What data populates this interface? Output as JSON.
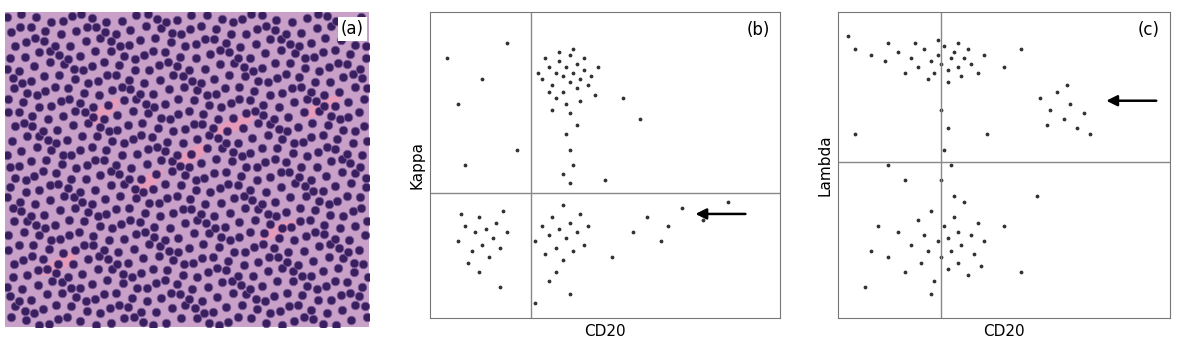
{
  "chart_data": [
    {
      "type": "image",
      "panel_label": "(a)"
    },
    {
      "type": "scatter",
      "panel_label": "(b)",
      "x_label": "CD20",
      "y_label": "Kappa",
      "xlim": [
        0,
        100
      ],
      "ylim": [
        0,
        100
      ],
      "tick_labels": false,
      "color": "#333333",
      "quadrant": {
        "x": 29,
        "y": 41
      },
      "arrow": {
        "x": 75,
        "y": 34
      },
      "points": [
        [
          32,
          78
        ],
        [
          34,
          82
        ],
        [
          35,
          76
        ],
        [
          36,
          80
        ],
        [
          37,
          84
        ],
        [
          38,
          74
        ],
        [
          38,
          79
        ],
        [
          39,
          82
        ],
        [
          40,
          77
        ],
        [
          40,
          86
        ],
        [
          41,
          80
        ],
        [
          42,
          75
        ],
        [
          42,
          83
        ],
        [
          43,
          78
        ],
        [
          44,
          81
        ],
        [
          45,
          76
        ],
        [
          36,
          72
        ],
        [
          33,
          85
        ],
        [
          39,
          70
        ],
        [
          41,
          88
        ],
        [
          44,
          85
        ],
        [
          46,
          79
        ],
        [
          47,
          73
        ],
        [
          35,
          68
        ],
        [
          43,
          71
        ],
        [
          37,
          87
        ],
        [
          40,
          67
        ],
        [
          34,
          74
        ],
        [
          48,
          82
        ],
        [
          31,
          80
        ],
        [
          39,
          60
        ],
        [
          40,
          55
        ],
        [
          41,
          50
        ],
        [
          38,
          47
        ],
        [
          42,
          63
        ],
        [
          40,
          44
        ],
        [
          8,
          25
        ],
        [
          10,
          30
        ],
        [
          12,
          22
        ],
        [
          13,
          28
        ],
        [
          14,
          33
        ],
        [
          15,
          24
        ],
        [
          16,
          29
        ],
        [
          17,
          20
        ],
        [
          18,
          26
        ],
        [
          11,
          18
        ],
        [
          19,
          31
        ],
        [
          20,
          23
        ],
        [
          9,
          34
        ],
        [
          14,
          15
        ],
        [
          22,
          28
        ],
        [
          21,
          35
        ],
        [
          30,
          25
        ],
        [
          32,
          30
        ],
        [
          33,
          21
        ],
        [
          34,
          27
        ],
        [
          35,
          33
        ],
        [
          36,
          23
        ],
        [
          37,
          29
        ],
        [
          38,
          19
        ],
        [
          39,
          26
        ],
        [
          40,
          31
        ],
        [
          41,
          22
        ],
        [
          42,
          28
        ],
        [
          43,
          34
        ],
        [
          44,
          24
        ],
        [
          36,
          15
        ],
        [
          38,
          37
        ],
        [
          34,
          12
        ],
        [
          45,
          30
        ],
        [
          5,
          85
        ],
        [
          8,
          70
        ],
        [
          15,
          78
        ],
        [
          22,
          90
        ],
        [
          55,
          72
        ],
        [
          60,
          65
        ],
        [
          25,
          55
        ],
        [
          10,
          50
        ],
        [
          52,
          20
        ],
        [
          58,
          28
        ],
        [
          62,
          33
        ],
        [
          68,
          30
        ],
        [
          72,
          36
        ],
        [
          66,
          25
        ],
        [
          78,
          32
        ],
        [
          85,
          38
        ],
        [
          30,
          5
        ],
        [
          40,
          8
        ],
        [
          20,
          10
        ],
        [
          50,
          45
        ]
      ]
    },
    {
      "type": "scatter",
      "panel_label": "(c)",
      "x_label": "CD20",
      "y_label": "Lambda",
      "xlim": [
        0,
        100
      ],
      "ylim": [
        0,
        100
      ],
      "tick_labels": false,
      "color": "#333333",
      "quadrant": {
        "x": 31,
        "y": 51
      },
      "arrow": {
        "x": 80,
        "y": 71
      },
      "points": [
        [
          5,
          88
        ],
        [
          10,
          86
        ],
        [
          14,
          84
        ],
        [
          18,
          87
        ],
        [
          22,
          85
        ],
        [
          24,
          82
        ],
        [
          26,
          88
        ],
        [
          28,
          84
        ],
        [
          29,
          80
        ],
        [
          30,
          86
        ],
        [
          31,
          83
        ],
        [
          32,
          89
        ],
        [
          33,
          81
        ],
        [
          34,
          85
        ],
        [
          35,
          87
        ],
        [
          36,
          82
        ],
        [
          37,
          79
        ],
        [
          38,
          85
        ],
        [
          39,
          88
        ],
        [
          40,
          83
        ],
        [
          42,
          80
        ],
        [
          44,
          86
        ],
        [
          27,
          78
        ],
        [
          23,
          90
        ],
        [
          20,
          80
        ],
        [
          15,
          90
        ],
        [
          3,
          92
        ],
        [
          33,
          77
        ],
        [
          30,
          91
        ],
        [
          36,
          90
        ],
        [
          15,
          20
        ],
        [
          18,
          28
        ],
        [
          20,
          15
        ],
        [
          22,
          24
        ],
        [
          24,
          32
        ],
        [
          25,
          18
        ],
        [
          26,
          27
        ],
        [
          27,
          22
        ],
        [
          28,
          35
        ],
        [
          29,
          12
        ],
        [
          30,
          25
        ],
        [
          31,
          20
        ],
        [
          32,
          30
        ],
        [
          33,
          16
        ],
        [
          33,
          26
        ],
        [
          34,
          22
        ],
        [
          35,
          33
        ],
        [
          36,
          18
        ],
        [
          36,
          28
        ],
        [
          37,
          24
        ],
        [
          38,
          38
        ],
        [
          39,
          14
        ],
        [
          40,
          27
        ],
        [
          41,
          21
        ],
        [
          42,
          31
        ],
        [
          43,
          17
        ],
        [
          44,
          25
        ],
        [
          12,
          30
        ],
        [
          10,
          22
        ],
        [
          28,
          8
        ],
        [
          35,
          40
        ],
        [
          31,
          45
        ],
        [
          32,
          55
        ],
        [
          33,
          62
        ],
        [
          31,
          68
        ],
        [
          34,
          50
        ],
        [
          61,
          72
        ],
        [
          64,
          68
        ],
        [
          66,
          74
        ],
        [
          68,
          65
        ],
        [
          70,
          70
        ],
        [
          72,
          62
        ],
        [
          74,
          67
        ],
        [
          76,
          60
        ],
        [
          63,
          63
        ],
        [
          69,
          76
        ],
        [
          5,
          60
        ],
        [
          15,
          50
        ],
        [
          50,
          82
        ],
        [
          55,
          88
        ],
        [
          8,
          10
        ],
        [
          50,
          30
        ],
        [
          55,
          15
        ],
        [
          20,
          45
        ],
        [
          45,
          60
        ],
        [
          60,
          40
        ]
      ]
    }
  ]
}
